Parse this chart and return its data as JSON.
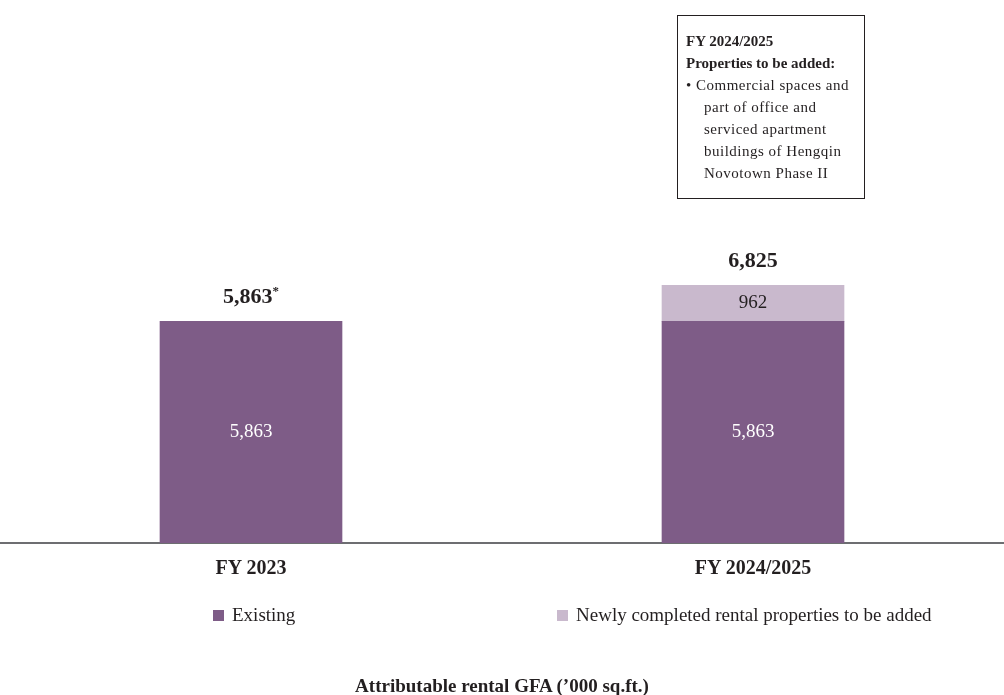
{
  "chart_data": {
    "type": "bar",
    "stacked": true,
    "categories": [
      "FY 2023",
      "FY 2024/2025"
    ],
    "series": [
      {
        "name": "Existing",
        "color": "#7e5c87",
        "values": [
          5863,
          5863
        ],
        "value_labels": [
          "5,863",
          "5,863"
        ]
      },
      {
        "name": "Newly completed rental properties to be added",
        "color": "#c9b9cd",
        "values": [
          null,
          962
        ],
        "value_labels": [
          null,
          "962"
        ]
      }
    ],
    "totals": [
      "5,863$^{*}$",
      "6,825"
    ],
    "annotations": [
      "FY 2024/2025",
      "Properties to be added:",
      "• Commercial spaces and part of office and serviced apartment buildings of Hengqin Novotown Phase II",
      "Attributable rental GFA (’000 sq.ft.)"
    ],
    "legend": "bottom",
    "grid": false
  }
}
